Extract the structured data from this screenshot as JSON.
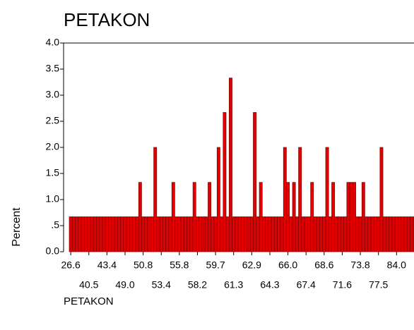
{
  "chart_data": {
    "type": "bar",
    "title": "PETAKON",
    "y_label": "Percent",
    "x_label": "PETAKON",
    "color": "#e00000",
    "categories": [
      "26.6",
      null,
      null,
      null,
      null,
      null,
      "40.5",
      null,
      null,
      null,
      null,
      null,
      "43.4",
      null,
      null,
      null,
      null,
      null,
      "49.0",
      null,
      null,
      null,
      null,
      null,
      "50.8",
      null,
      null,
      null,
      null,
      null,
      "53.4",
      null,
      null,
      null,
      null,
      null,
      "55.8",
      null,
      null,
      null,
      null,
      null,
      "58.2",
      null,
      null,
      null,
      null,
      null,
      "59.7",
      null,
      null,
      null,
      null,
      null,
      "61.3",
      null,
      null,
      null,
      null,
      null,
      "62.9",
      null,
      null,
      null,
      null,
      null,
      "64.3",
      null,
      null,
      null,
      null,
      null,
      "66.0",
      null,
      null,
      null,
      null,
      null,
      "67.4",
      null,
      null,
      null,
      null,
      null,
      "68.6",
      null,
      null,
      null,
      null,
      null,
      "71.6",
      null,
      null,
      null,
      null,
      null,
      "73.8",
      null,
      null,
      null,
      null,
      null,
      "77.5",
      null,
      null,
      null,
      null,
      null,
      "84.0",
      null,
      null,
      null,
      null,
      null,
      null
    ],
    "values": [
      0.67,
      0.67,
      0.67,
      0.67,
      0.67,
      0.67,
      0.67,
      0.67,
      0.67,
      0.67,
      0.67,
      0.67,
      0.67,
      0.67,
      0.67,
      0.67,
      0.67,
      0.67,
      0.67,
      0.67,
      0.67,
      0.67,
      0.67,
      1.33,
      0.67,
      0.67,
      0.67,
      0.67,
      2.0,
      0.67,
      0.67,
      0.67,
      0.67,
      0.67,
      1.33,
      0.67,
      0.67,
      0.67,
      0.67,
      0.67,
      0.67,
      1.33,
      0.67,
      0.67,
      0.67,
      0.67,
      1.33,
      0.67,
      0.67,
      2.0,
      0.67,
      2.67,
      0.67,
      3.33,
      0.67,
      0.67,
      0.67,
      0.67,
      0.67,
      0.67,
      0.67,
      2.67,
      0.67,
      1.33,
      0.67,
      0.67,
      0.67,
      0.67,
      0.67,
      0.67,
      0.67,
      2.0,
      1.33,
      0.67,
      1.33,
      0.67,
      2.0,
      0.67,
      0.67,
      0.67,
      1.33,
      0.67,
      0.67,
      0.67,
      0.67,
      2.0,
      0.67,
      1.33,
      0.67,
      0.67,
      0.67,
      0.67,
      1.33,
      1.33,
      1.33,
      0.67,
      0.67,
      1.33,
      0.67,
      0.67,
      0.67,
      0.67,
      0.67,
      2.0,
      0.67,
      0.67,
      0.67,
      0.67,
      0.67,
      0.67,
      0.67,
      0.67,
      0.67,
      0.67,
      0.67
    ],
    "ylim": [
      0,
      4
    ],
    "yticks": [
      {
        "value": 0,
        "label": "0.0"
      },
      {
        "value": 0.5,
        "label": ".5"
      },
      {
        "value": 1,
        "label": "1.0"
      },
      1.5,
      {
        "value": 2,
        "label": "2.0"
      },
      2.5,
      {
        "value": 3,
        "label": "3.0"
      },
      3.5,
      {
        "value": 4,
        "label": "4.0"
      }
    ]
  }
}
